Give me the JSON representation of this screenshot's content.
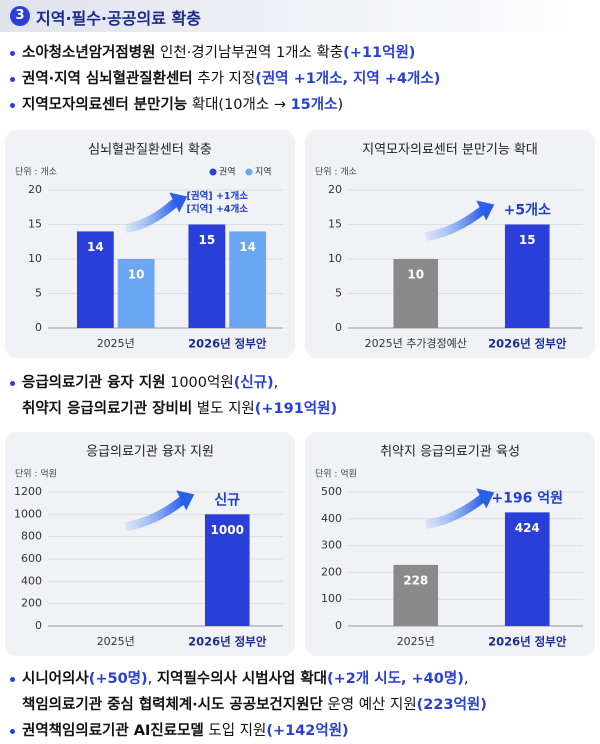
{
  "header": {
    "number": "3",
    "title": "지역·필수·공공의료 확충"
  },
  "bullets_top": [
    {
      "marker": true,
      "segments": [
        {
          "text": "소아청소년암거점병원",
          "style": "bold"
        },
        {
          "text": " 인천·경기남부권역 1개소 확충",
          "style": "plain"
        },
        {
          "text": "(+11억원)",
          "style": "accent"
        }
      ]
    },
    {
      "marker": true,
      "segments": [
        {
          "text": "권역·지역 심뇌혈관질환센터",
          "style": "bold"
        },
        {
          "text": " 추가 지정",
          "style": "plain"
        },
        {
          "text": "(권역 +1개소, 지역 +4개소)",
          "style": "accent"
        }
      ]
    },
    {
      "marker": true,
      "segments": [
        {
          "text": "지역모자의료센터 분만기능",
          "style": "bold"
        },
        {
          "text": " 확대(10개소 → ",
          "style": "plain"
        },
        {
          "text": "15개소",
          "style": "accent"
        },
        {
          "text": ")",
          "style": "plain"
        }
      ]
    }
  ],
  "bullets_middle": [
    {
      "marker": true,
      "segments": [
        {
          "text": "응급의료기관 융자 지원",
          "style": "bold"
        },
        {
          "text": " 1000억원",
          "style": "plain"
        },
        {
          "text": "(신규)",
          "style": "accent"
        },
        {
          "text": ",",
          "style": "plain"
        }
      ]
    },
    {
      "marker": false,
      "segments": [
        {
          "text": "취약지 응급의료기관 장비비",
          "style": "bold"
        },
        {
          "text": " 별도 지원",
          "style": "plain"
        },
        {
          "text": "(+191억원)",
          "style": "accent"
        }
      ]
    }
  ],
  "bullets_bottom": [
    {
      "marker": true,
      "segments": [
        {
          "text": "시니어의사",
          "style": "bold"
        },
        {
          "text": "(+50명)",
          "style": "accent"
        },
        {
          "text": ", ",
          "style": "plain"
        },
        {
          "text": "지역필수의사 시범사업 확대",
          "style": "bold"
        },
        {
          "text": "(+2개 시도, +40명)",
          "style": "accent"
        },
        {
          "text": ",",
          "style": "plain"
        }
      ]
    },
    {
      "marker": false,
      "segments": [
        {
          "text": "책임의료기관 중심 협력체계·시도 공공보건지원단",
          "style": "bold"
        },
        {
          "text": " 운영 예산 지원",
          "style": "plain"
        },
        {
          "text": "(223억원)",
          "style": "accent"
        }
      ]
    },
    {
      "marker": true,
      "segments": [
        {
          "text": "권역책임의료기관 AI진료모델",
          "style": "bold"
        },
        {
          "text": " 도입 지원",
          "style": "plain"
        },
        {
          "text": "(+142억원)",
          "style": "accent"
        }
      ]
    }
  ],
  "chart_data": [
    {
      "type": "bar",
      "title": "심뇌혈관질환센터 확충",
      "unit": "단위 : 개소",
      "categories": [
        "2025년",
        "2026년 정부안"
      ],
      "series": [
        {
          "name": "권역",
          "color": "#2a3fd8",
          "values": [
            14,
            15
          ]
        },
        {
          "name": "지역",
          "color": "#6aa6f2",
          "values": [
            10,
            14
          ]
        }
      ],
      "annotations": [
        "[권역] +1개소",
        "[지역] +4개소"
      ],
      "ylim": [
        0,
        20
      ],
      "yticks": [
        0,
        5,
        10,
        15,
        20
      ],
      "grid": true
    },
    {
      "type": "bar",
      "title": "지역모자의료센터 분만기능 확대",
      "unit": "단위 : 개소",
      "categories": [
        "2025년 추가경정예산",
        "2026년 정부안"
      ],
      "values": [
        10,
        15
      ],
      "colors": [
        "#8a8a8a",
        "#2a3fd8"
      ],
      "annotations": [
        "+5개소"
      ],
      "ylim": [
        0,
        20
      ],
      "yticks": [
        0,
        5,
        10,
        15,
        20
      ],
      "grid": true
    },
    {
      "type": "bar",
      "title": "응급의료기관 융자 지원",
      "unit": "단위 : 억원",
      "categories": [
        "2025년",
        "2026년 정부안"
      ],
      "values": [
        null,
        1000
      ],
      "colors": [
        "#8a8a8a",
        "#2a3fd8"
      ],
      "annotations": [
        "신규"
      ],
      "ylim": [
        0,
        1200
      ],
      "yticks": [
        0,
        200,
        400,
        600,
        800,
        1000,
        1200
      ],
      "grid": true
    },
    {
      "type": "bar",
      "title": "취약지 응급의료기관 육성",
      "unit": "단위 : 억원",
      "categories": [
        "2025년",
        "2026년 정부안"
      ],
      "values": [
        228,
        424
      ],
      "colors": [
        "#8a8a8a",
        "#2a3fd8"
      ],
      "annotations": [
        "+196 억원"
      ],
      "ylim": [
        0,
        500
      ],
      "yticks": [
        0,
        100,
        200,
        300,
        400,
        500
      ],
      "grid": true
    }
  ]
}
